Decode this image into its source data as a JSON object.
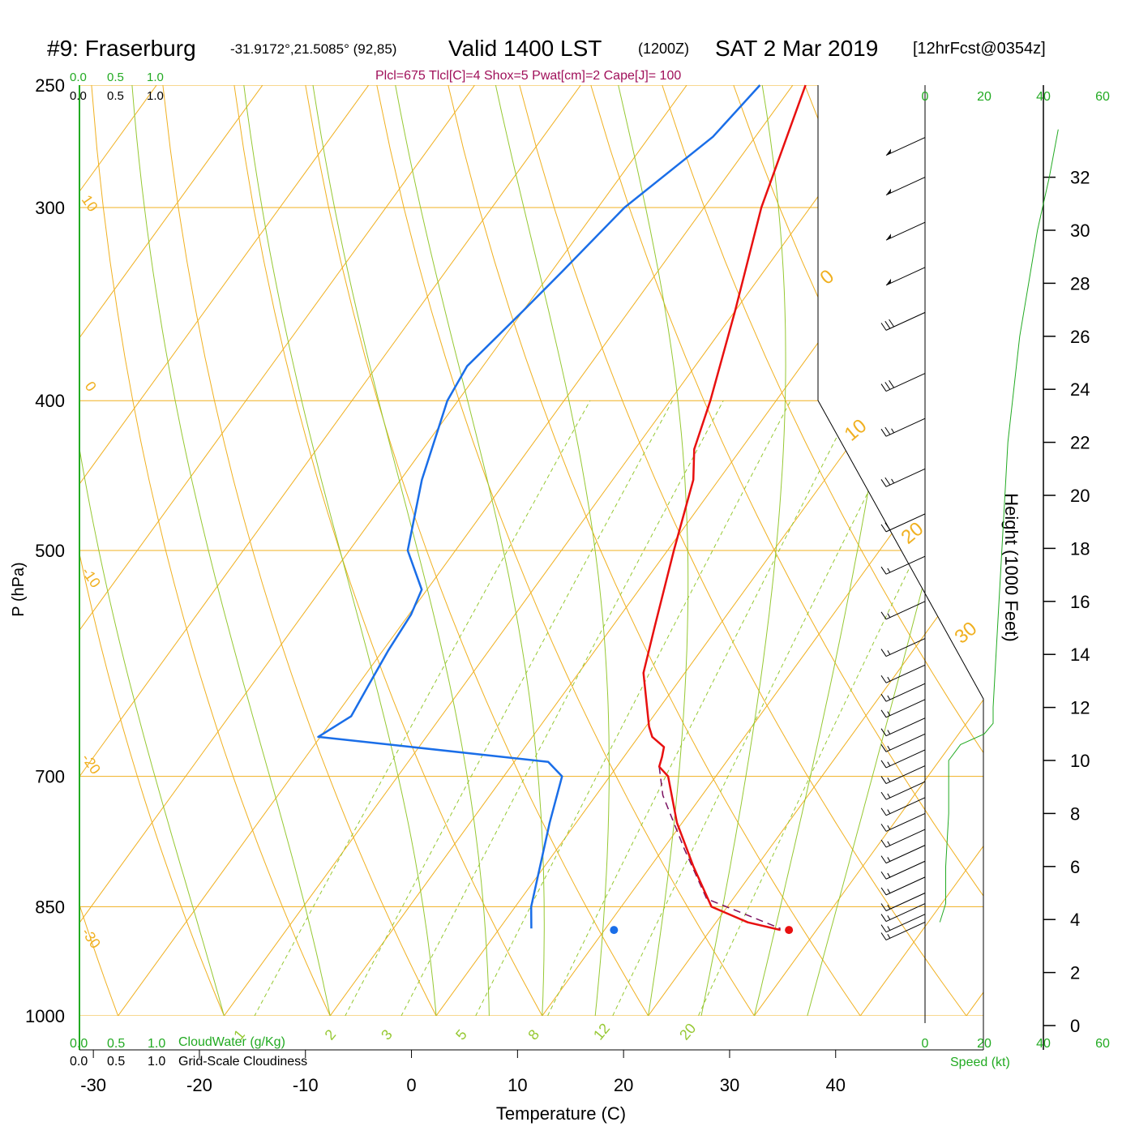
{
  "header": {
    "station": "#9: Fraserburg",
    "coords": "-31.9172°,21.5085° (92,85)",
    "valid": "Valid 1400 LST",
    "utc": "(1200Z)",
    "date": "SAT 2 Mar 2019",
    "forecast": "[12hrFcst@0354z]",
    "indices": "Plcl=675 Tlcl[C]=4 Shox=5 Pwat[cm]=2 Cape[J]= 100"
  },
  "colors": {
    "temperature": "#e81010",
    "dewpoint": "#1a6ee8",
    "parcel": "#7a1060",
    "isobar_isotherm": "#f0b020",
    "moist_adiabat": "#96c832",
    "mixing_ratio": "#96c832",
    "cloud_scale": "#22aa22",
    "indices": "#a0105a"
  },
  "legends": {
    "cloud_top_ticks": [
      "0.0",
      "0.5",
      "1.0"
    ],
    "grid_top_ticks": [
      "0.0",
      "0.5",
      "1.0"
    ],
    "cloud_bottom_ticks": [
      "0.0",
      "0.5",
      "1.0"
    ],
    "cloud_bottom_label": "CloudWater (g/Kg)",
    "grid_bottom_ticks": [
      "0.0",
      "0.5",
      "1.0"
    ],
    "grid_bottom_label": "Grid-Scale Cloudiness"
  },
  "speed_axis": {
    "top_ticks": [
      "0",
      "20",
      "40",
      "60"
    ],
    "bottom_ticks": [
      "0",
      "20",
      "40",
      "60"
    ],
    "label": "Speed (kt)"
  },
  "height_axis": {
    "label": "Height (1000 Feet)",
    "ticks": [
      "0",
      "2",
      "4",
      "6",
      "8",
      "10",
      "12",
      "14",
      "16",
      "18",
      "20",
      "22",
      "24",
      "26",
      "28",
      "30",
      "32"
    ]
  },
  "chart_data": {
    "type": "line",
    "title": "#9: Fraserburg -31.9172°,21.5085° (92,85) Valid 1400 LST (1200Z) SAT 2 Mar 2019 [12hrFcst@0354z]",
    "xlabel": "Temperature (C)",
    "ylabel": "P (hPa)",
    "x_ticks": [
      -30,
      -20,
      -10,
      0,
      10,
      20,
      30,
      40
    ],
    "y_ticks": [
      250,
      300,
      400,
      500,
      700,
      850,
      1000
    ],
    "xlim": [
      -34,
      36
    ],
    "ylim": [
      1000,
      250
    ],
    "surface_pressure": 880,
    "isotherm_labels": [
      "10",
      "0",
      "-10",
      "-20",
      "-30",
      "0",
      "10",
      "20",
      "30"
    ],
    "mixing_ratio_labels": [
      "1",
      "2",
      "3",
      "5",
      "8",
      "12",
      "20"
    ],
    "series": [
      {
        "key": "temperature",
        "points": [
          [
            -28.8,
            250
          ],
          [
            -24.6,
            300
          ],
          [
            -20.0,
            350
          ],
          [
            -16.2,
            400
          ],
          [
            -14.4,
            430
          ],
          [
            -12.4,
            450
          ],
          [
            -9.4,
            500
          ],
          [
            -6.0,
            560
          ],
          [
            -3.9,
            600
          ],
          [
            0.3,
            650
          ],
          [
            1.3,
            660
          ],
          [
            3.1,
            670
          ],
          [
            3.6,
            680
          ],
          [
            4.0,
            690
          ],
          [
            5.5,
            700
          ],
          [
            9.5,
            750
          ],
          [
            14.0,
            800
          ],
          [
            18.5,
            850
          ],
          [
            23.0,
            870
          ],
          [
            26.6,
            880
          ]
        ],
        "legend": "Temperature"
      },
      {
        "key": "dewpoint",
        "points": [
          [
            -33.1,
            250
          ],
          [
            -34.0,
            270
          ],
          [
            -37.5,
            300
          ],
          [
            -39.0,
            330
          ],
          [
            -40.0,
            350
          ],
          [
            -41.5,
            380
          ],
          [
            -41.0,
            400
          ],
          [
            -38.0,
            450
          ],
          [
            -34.5,
            500
          ],
          [
            -30.5,
            530
          ],
          [
            -29.8,
            550
          ],
          [
            -29.5,
            580
          ],
          [
            -29.0,
            610
          ],
          [
            -28.5,
            640
          ],
          [
            -30.2,
            660
          ],
          [
            -6.8,
            685
          ],
          [
            -4.5,
            700
          ],
          [
            -2.5,
            750
          ],
          [
            1.5,
            850
          ],
          [
            3.0,
            878
          ]
        ],
        "legend": "Dewpoint"
      },
      {
        "key": "parcel",
        "points": [
          [
            4.0,
            690
          ],
          [
            6.3,
            720
          ],
          [
            12.0,
            780
          ],
          [
            17.5,
            840
          ],
          [
            26.5,
            878
          ]
        ],
        "legend": "Parcel"
      }
    ],
    "surface_points": {
      "temperature": 27.4,
      "dewpoint": 10.9,
      "pressure": 880
    },
    "wind_profile": [
      {
        "height_kft": 33.5,
        "speed_kt": 35
      },
      {
        "height_kft": 32.0,
        "speed_kt": 35
      },
      {
        "height_kft": 30.3,
        "speed_kt": 35
      },
      {
        "height_kft": 28.6,
        "speed_kt": 35
      },
      {
        "height_kft": 26.9,
        "speed_kt": 30
      },
      {
        "height_kft": 24.6,
        "speed_kt": 30
      },
      {
        "height_kft": 22.9,
        "speed_kt": 25
      },
      {
        "height_kft": 21.0,
        "speed_kt": 25
      },
      {
        "height_kft": 19.3,
        "speed_kt": 20
      },
      {
        "height_kft": 17.7,
        "speed_kt": 15
      },
      {
        "height_kft": 16.0,
        "speed_kt": 15
      },
      {
        "height_kft": 14.6,
        "speed_kt": 15
      },
      {
        "height_kft": 13.6,
        "speed_kt": 15
      },
      {
        "height_kft": 12.9,
        "speed_kt": 15
      },
      {
        "height_kft": 12.3,
        "speed_kt": 15
      },
      {
        "height_kft": 11.6,
        "speed_kt": 15
      },
      {
        "height_kft": 11.0,
        "speed_kt": 15
      },
      {
        "height_kft": 10.4,
        "speed_kt": 15
      },
      {
        "height_kft": 9.8,
        "speed_kt": 15
      },
      {
        "height_kft": 9.2,
        "speed_kt": 15
      },
      {
        "height_kft": 8.6,
        "speed_kt": 15
      },
      {
        "height_kft": 8.0,
        "speed_kt": 15
      },
      {
        "height_kft": 7.4,
        "speed_kt": 15
      },
      {
        "height_kft": 6.8,
        "speed_kt": 15
      },
      {
        "height_kft": 6.2,
        "speed_kt": 15
      },
      {
        "height_kft": 5.6,
        "speed_kt": 15
      },
      {
        "height_kft": 5.0,
        "speed_kt": 15
      },
      {
        "height_kft": 4.6,
        "speed_kt": 15
      },
      {
        "height_kft": 4.2,
        "speed_kt": 15
      },
      {
        "height_kft": 3.9,
        "speed_kt": 15
      }
    ],
    "speed_profile": [
      [
        5,
        3.9
      ],
      [
        7,
        4.6
      ],
      [
        7,
        6.0
      ],
      [
        8,
        8.0
      ],
      [
        8,
        10.0
      ],
      [
        12,
        10.6
      ],
      [
        20,
        11.0
      ],
      [
        23,
        11.4
      ],
      [
        23,
        12.0
      ],
      [
        24,
        14.0
      ],
      [
        26,
        18.0
      ],
      [
        28,
        22.0
      ],
      [
        32,
        26.0
      ],
      [
        35,
        28.0
      ],
      [
        38,
        30.0
      ],
      [
        42,
        32.0
      ],
      [
        45,
        33.8
      ]
    ]
  }
}
